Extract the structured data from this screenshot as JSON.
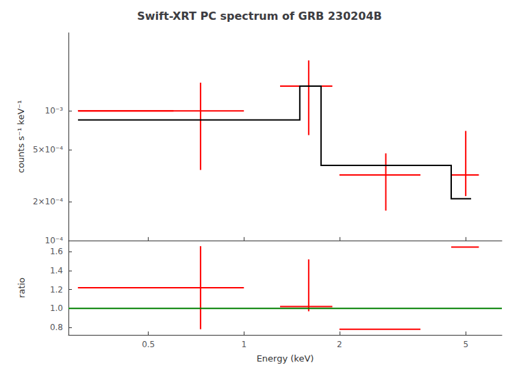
{
  "chart_data": [
    {
      "type": "step",
      "title": "Swift-XRT PC spectrum of GRB 230204B",
      "ylabel": "counts s⁻¹ keV⁻¹",
      "log": true,
      "grid": false,
      "tick_labels": "y",
      "xlim": [
        0.28,
        6.5
      ],
      "xticks": [
        0.5,
        1,
        2,
        5
      ],
      "ylim": [
        0.0001,
        0.004
      ],
      "yticks": [
        {
          "value": 0.0001,
          "label": "10⁻⁴"
        },
        {
          "value": 0.0002,
          "label": "2×10⁻⁴"
        },
        {
          "value": 0.0005,
          "label": "5×10⁻⁴"
        },
        {
          "value": 0.001,
          "label": "10⁻³"
        }
      ],
      "series": [
        {
          "type": "step",
          "color": "black",
          "bins": [
            0.3,
            0.73,
            1.5,
            1.75,
            2.5,
            4.5,
            5.2
          ],
          "values": [
            0.00085,
            0.00085,
            0.00155,
            0.00038,
            0.00038,
            0.00021
          ]
        },
        {
          "type": "errorbar",
          "color": "red",
          "x": [
            0.45,
            0.73,
            1.6,
            2.8,
            5.0
          ],
          "values": [
            0.001,
            0.001,
            0.00155,
            0.00032,
            0.00032
          ],
          "xerr_lo": [
            0.15,
            0.43,
            0.3,
            0.8,
            0.5
          ],
          "xerr_hi": [
            0.15,
            0.27,
            0.3,
            0.8,
            0.5
          ],
          "yerr_lo": [
            0.0,
            0.00065,
            0.0009,
            0.00015,
            0.0001
          ],
          "yerr_hi": [
            0.0,
            0.00065,
            0.0009,
            0.00015,
            0.00038
          ]
        }
      ]
    },
    {
      "type": "errorbar",
      "xlabel": "Energy (keV)",
      "ylabel": "ratio",
      "log": "x",
      "grid": false,
      "xlim": [
        0.28,
        6.5
      ],
      "xticks": [
        0.5,
        1,
        2,
        5
      ],
      "ylim": [
        0.72,
        1.72
      ],
      "yticks": [
        0.8,
        {
          "value": 1.0,
          "label": "1.0"
        },
        1.2,
        1.4,
        1.6
      ],
      "series": [
        {
          "type": "hline",
          "color": "green",
          "values": [
            1.0
          ]
        },
        {
          "type": "errorbar",
          "color": "red",
          "x": [
            0.45,
            0.73,
            1.6,
            2.8,
            5.0
          ],
          "values": [
            1.22,
            1.22,
            1.02,
            0.78,
            1.65
          ],
          "xerr_lo": [
            0.15,
            0.43,
            0.3,
            0.8,
            0.5
          ],
          "xerr_hi": [
            0.15,
            0.27,
            0.3,
            0.8,
            0.5
          ],
          "yerr_lo": [
            0.0,
            0.44,
            0.05,
            0.0,
            0.0
          ],
          "yerr_hi": [
            0.0,
            0.44,
            0.5,
            0.0,
            0.0
          ]
        }
      ]
    }
  ]
}
